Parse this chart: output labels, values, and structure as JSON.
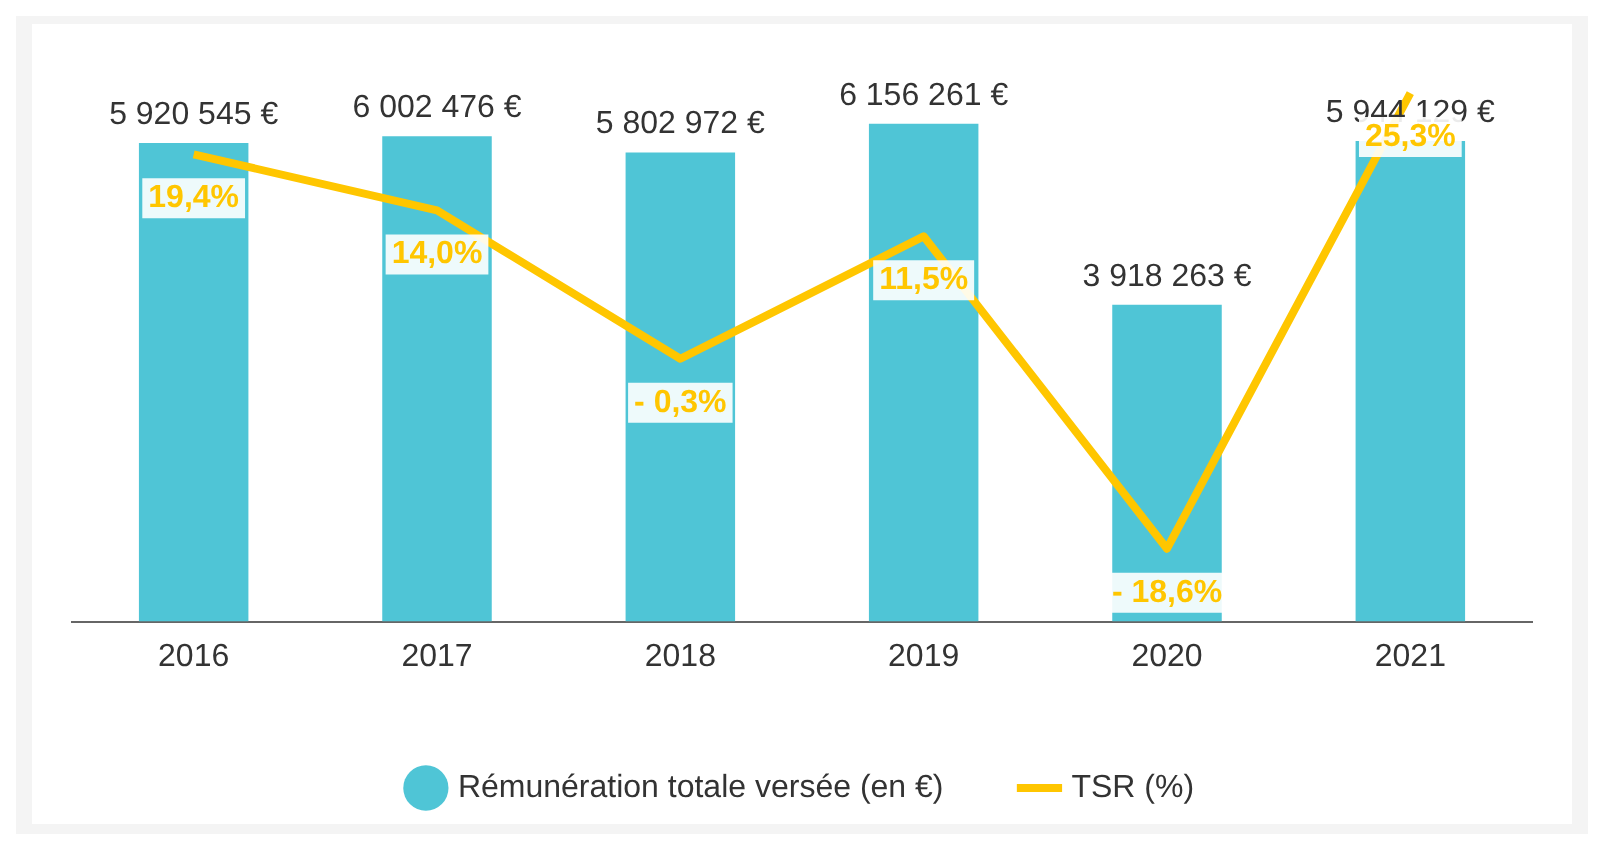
{
  "chart_data": {
    "type": "bar",
    "categories": [
      "2016",
      "2017",
      "2018",
      "2019",
      "2020",
      "2021"
    ],
    "series": [
      {
        "name": "Rémunération totale versée (en €)",
        "color": "#4fc5d6",
        "values": [
          5920545,
          6002476,
          5802972,
          6156261,
          3918263,
          5944129
        ],
        "value_labels": [
          "5 920 545 €",
          "6 002 476 €",
          "5 802 972 €",
          "6 156 261 €",
          "3 918 263 €",
          "5 944 129 €"
        ]
      },
      {
        "name": "TSR (%)",
        "type": "line",
        "axis": "y2",
        "color": "#ffc600",
        "values": [
          19.4,
          14.0,
          -0.3,
          11.5,
          -18.6,
          25.3
        ],
        "value_labels": [
          "19,4%",
          "14,0%",
          "- 0,3%",
          "11,5%",
          "- 18,6%",
          "25,3%"
        ]
      }
    ],
    "legend": "bottom",
    "grid": false,
    "marker": "none",
    "line_style": "solid"
  }
}
